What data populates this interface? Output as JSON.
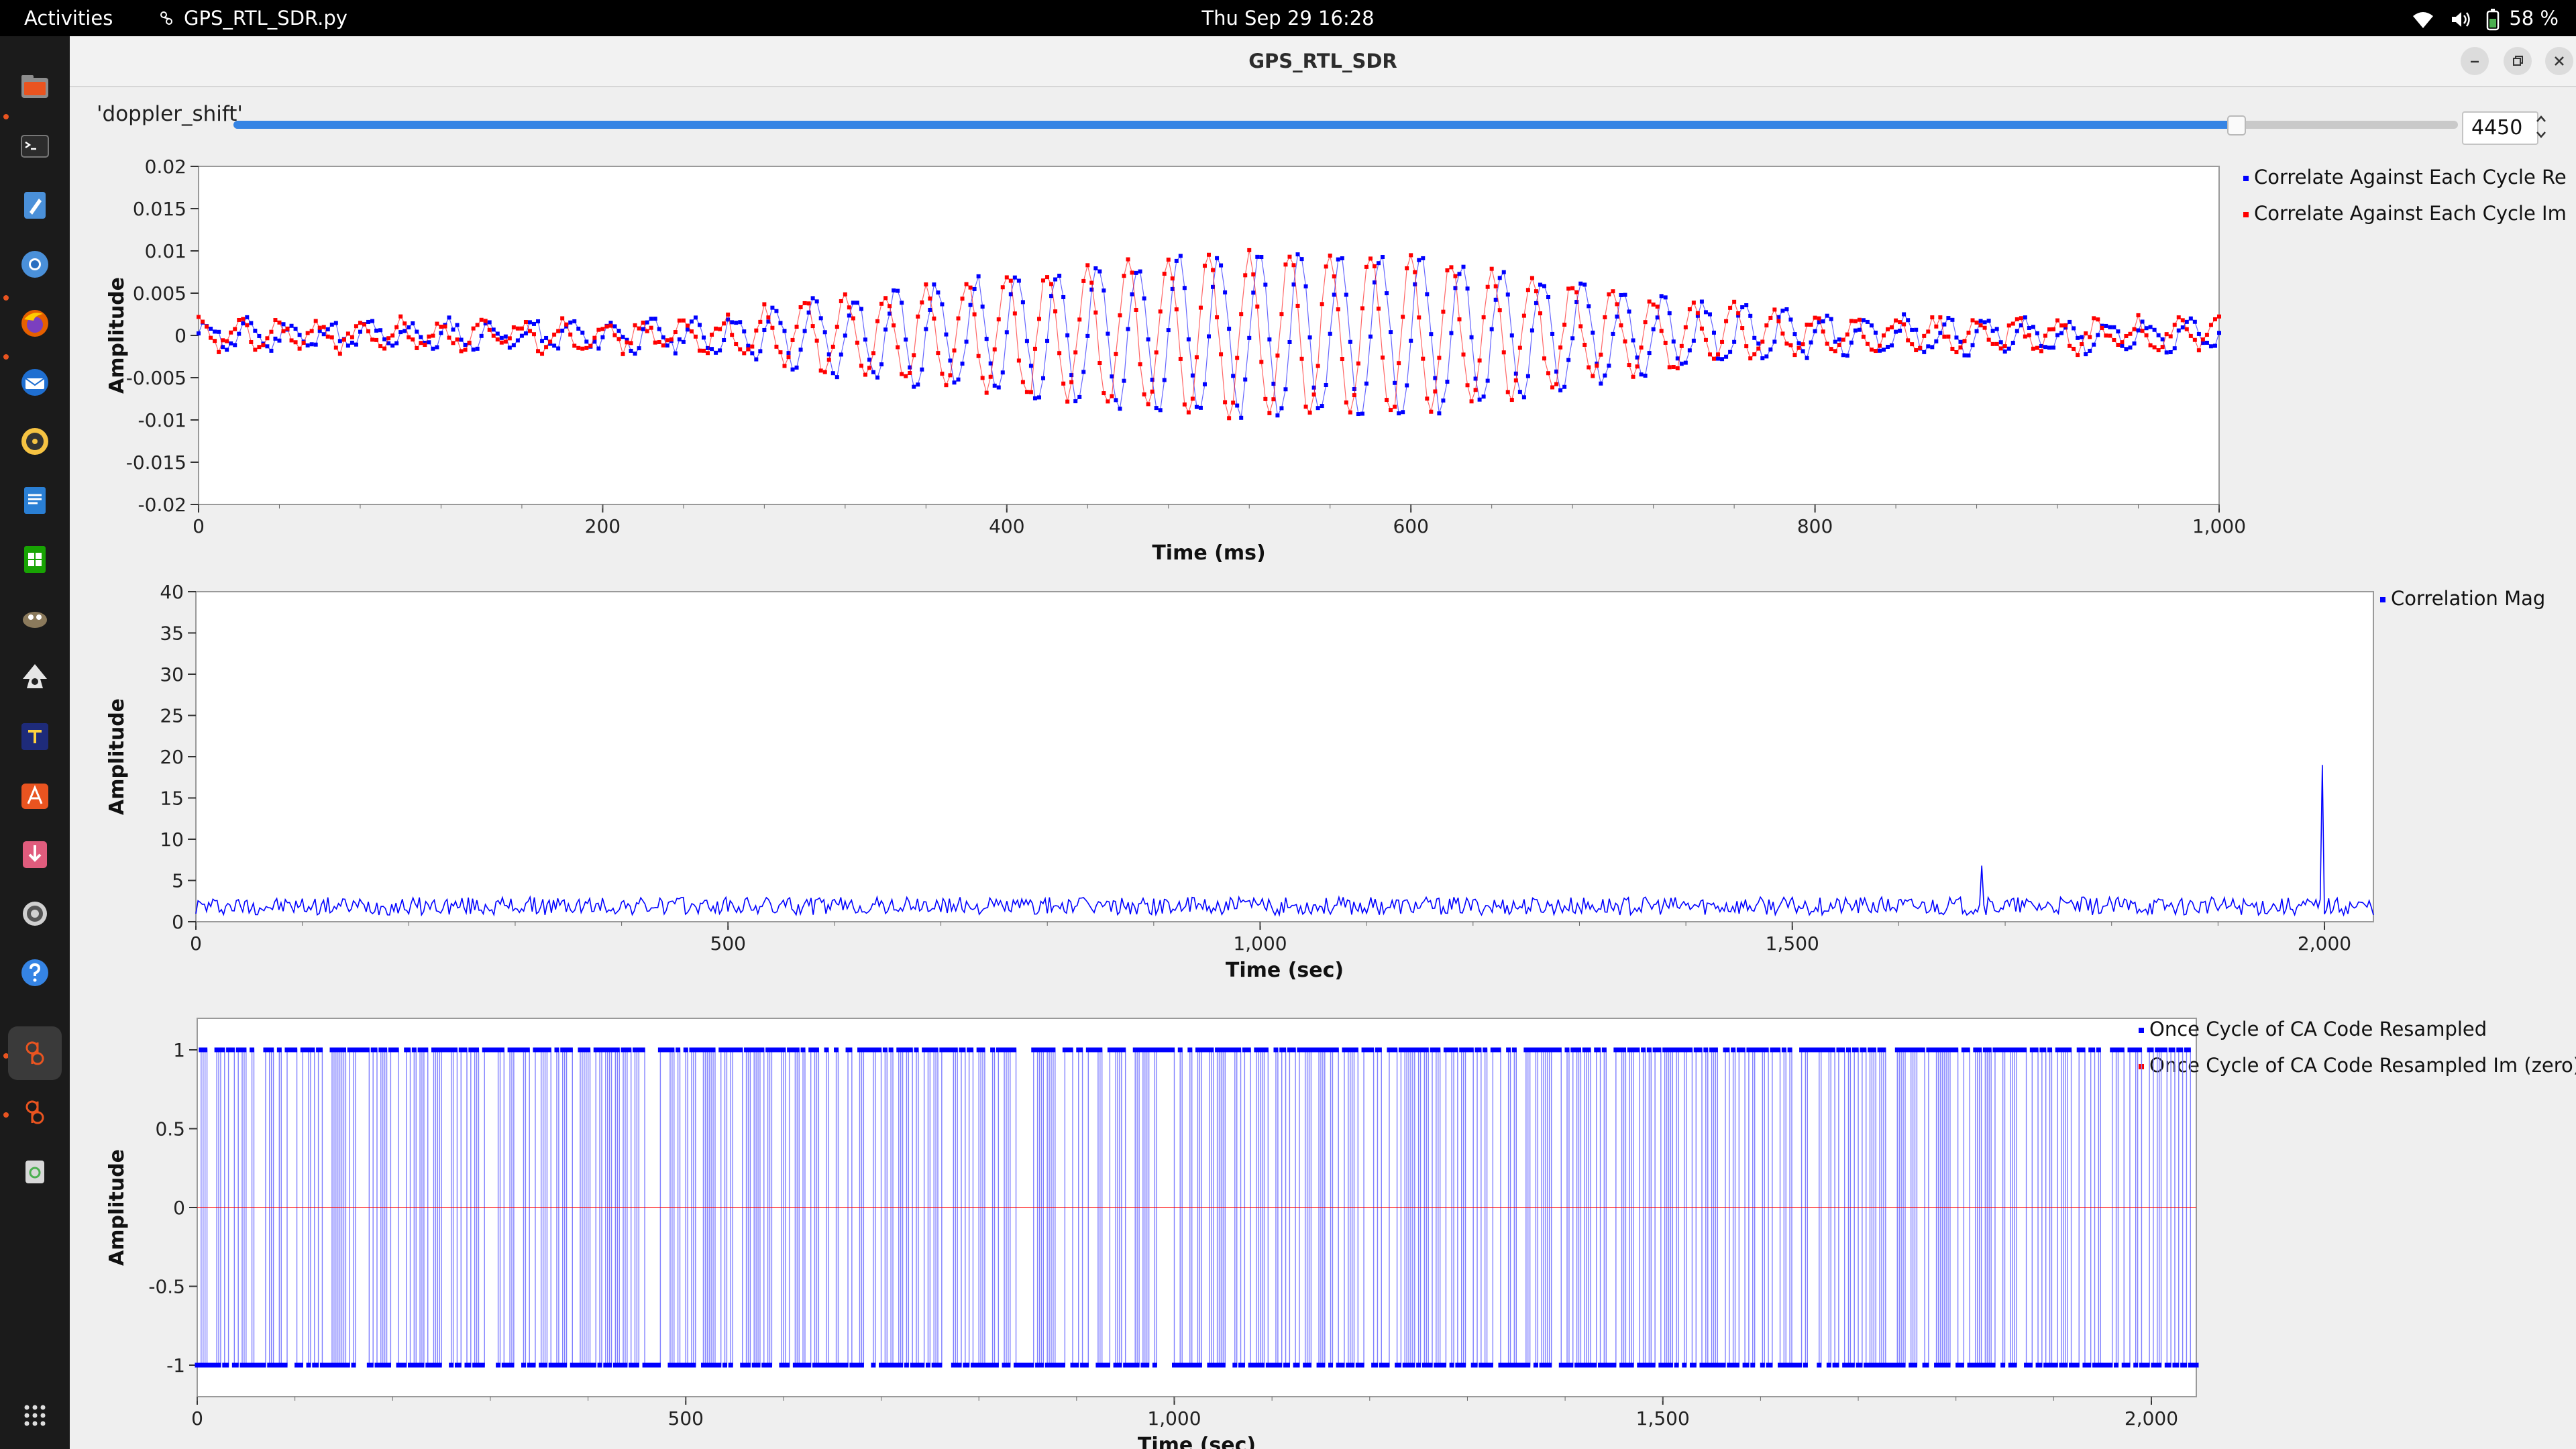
{
  "topbar": {
    "activities": "Activities",
    "app_name": "GPS_RTL_SDR.py",
    "clock": "Thu Sep 29  16:28",
    "battery": "58 %",
    "icons": [
      "wifi-icon",
      "volume-icon",
      "battery-icon"
    ]
  },
  "dock": {
    "items": [
      "files-icon",
      "terminal-icon",
      "text-editor-icon",
      "chromium-icon",
      "firefox-icon",
      "thunderbird-icon",
      "rhythmbox-icon",
      "writer-icon",
      "calc-icon",
      "gimp-icon",
      "inkscape-icon",
      "texstudio-icon",
      "software-center-icon",
      "sdr-app-icon",
      "settings-icon",
      "help-icon",
      "gnuradio-icon",
      "gnuradio-2-icon",
      "trash-icon",
      "app-grid-icon"
    ]
  },
  "window": {
    "title": "GPS_RTL_SDR",
    "controls": [
      "minimize-icon",
      "restore-icon",
      "close-icon"
    ]
  },
  "slider": {
    "label": "'doppler_shift'",
    "value": "4450",
    "fraction": 0.9
  },
  "colors": {
    "blue": "#0000ff",
    "red": "#ff0000",
    "accent": "#3584e4"
  },
  "chart_data": [
    {
      "type": "scatter",
      "xlabel": "Time (ms)",
      "ylabel": "Amplitude",
      "xlim": [
        0,
        1000
      ],
      "ylim": [
        -0.02,
        0.02
      ],
      "x_ticks": [
        "0",
        "200",
        "400",
        "600",
        "800",
        "1,000"
      ],
      "y_ticks": [
        "0.02",
        "0.015",
        "0.01",
        "0.005",
        "0",
        "-0.005",
        "-0.01",
        "-0.015",
        "-0.02"
      ],
      "grid": false,
      "legend": "right",
      "series": [
        {
          "name": "Correlate Against Each Cycle Re",
          "color": "#0000ff",
          "envelope": [
            [
              0,
              0.0015
            ],
            [
              250,
              0.0015
            ],
            [
              300,
              0.004
            ],
            [
              400,
              0.007
            ],
            [
              500,
              0.0095
            ],
            [
              600,
              0.0095
            ],
            [
              700,
              0.005
            ],
            [
              800,
              0.002
            ],
            [
              1000,
              0.0015
            ]
          ],
          "period_ms": 20,
          "phase": 0
        },
        {
          "name": "Correlate Against Each Cycle Im",
          "color": "#ff0000",
          "envelope": [
            [
              0,
              0.0015
            ],
            [
              250,
              0.0015
            ],
            [
              300,
              0.004
            ],
            [
              400,
              0.007
            ],
            [
              500,
              0.0095
            ],
            [
              600,
              0.0095
            ],
            [
              700,
              0.005
            ],
            [
              800,
              0.002
            ],
            [
              1000,
              0.0015
            ]
          ],
          "period_ms": 20,
          "phase": 1.57
        }
      ]
    },
    {
      "type": "line",
      "xlabel": "Time (sec)",
      "ylabel": "Amplitude",
      "xlim": [
        0,
        2046
      ],
      "ylim": [
        0,
        40
      ],
      "x_ticks": [
        "0",
        "500",
        "1,000",
        "1,500",
        "2,000"
      ],
      "y_ticks": [
        "40",
        "35",
        "30",
        "25",
        "20",
        "15",
        "10",
        "5",
        "0"
      ],
      "grid": false,
      "legend": "top-right",
      "series": [
        {
          "name": "Correlation Mag",
          "color": "#0000ff",
          "noise_level": 2.3,
          "peak_x": 1998,
          "peak_y": 19
        }
      ]
    },
    {
      "type": "line",
      "xlabel": "Time (sec)",
      "ylabel": "Amplitude",
      "xlim": [
        0,
        2046
      ],
      "ylim": [
        -1.2,
        1.2
      ],
      "x_ticks": [
        "0",
        "500",
        "1,000",
        "1,500",
        "2,000"
      ],
      "y_ticks": [
        "1",
        "0.5",
        "0",
        "-0.5",
        "-1"
      ],
      "grid": false,
      "legend": "top-right",
      "series": [
        {
          "name": "Once Cycle of CA Code Resampled",
          "color": "#0000ff",
          "levels": [
            1,
            -1
          ]
        },
        {
          "name": "Once Cycle of CA Code Resampled Im (zero)",
          "color": "#ff0000",
          "value": 0
        }
      ]
    }
  ]
}
